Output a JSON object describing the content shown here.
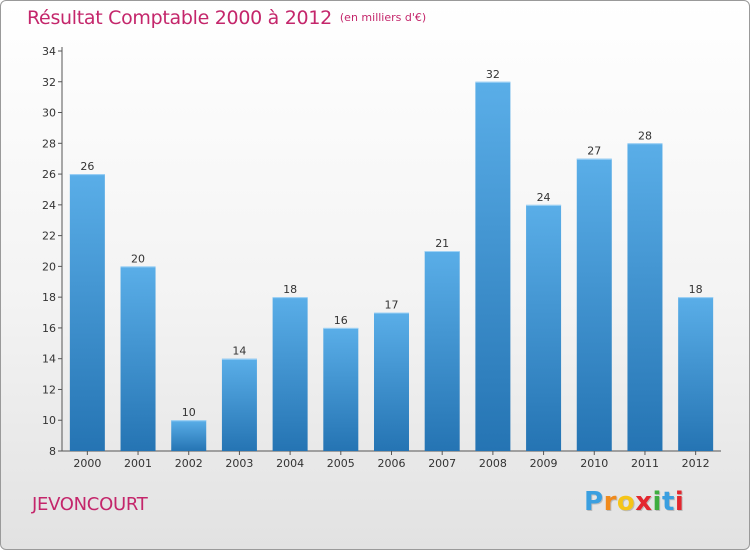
{
  "chart_data": {
    "type": "bar",
    "title": "Résultat Comptable 2000 à 2012",
    "subtitle": "(en milliers d'€)",
    "categories": [
      "2000",
      "2001",
      "2002",
      "2003",
      "2004",
      "2005",
      "2006",
      "2007",
      "2008",
      "2009",
      "2010",
      "2011",
      "2012"
    ],
    "values": [
      26,
      20,
      10,
      14,
      18,
      16,
      17,
      21,
      32,
      24,
      27,
      28,
      18
    ],
    "ylim": [
      8,
      34
    ],
    "yticks": [
      8,
      10,
      12,
      14,
      16,
      18,
      20,
      22,
      24,
      26,
      28,
      30,
      32,
      34
    ],
    "grid": false,
    "colors": {
      "bar_light": "#5aaee8",
      "bar_dark": "#2574b3",
      "title": "#c4266b"
    }
  },
  "footer": {
    "town": "JEVONCOURT",
    "brand_letters": [
      "P",
      "r",
      "o",
      "x",
      "i",
      "t",
      "i"
    ],
    "brand_colors": [
      "#3a9fe0",
      "#f08a1c",
      "#f5c518",
      "#e3272f",
      "#3fae3f",
      "#3a9fe0",
      "#e3272f"
    ]
  }
}
